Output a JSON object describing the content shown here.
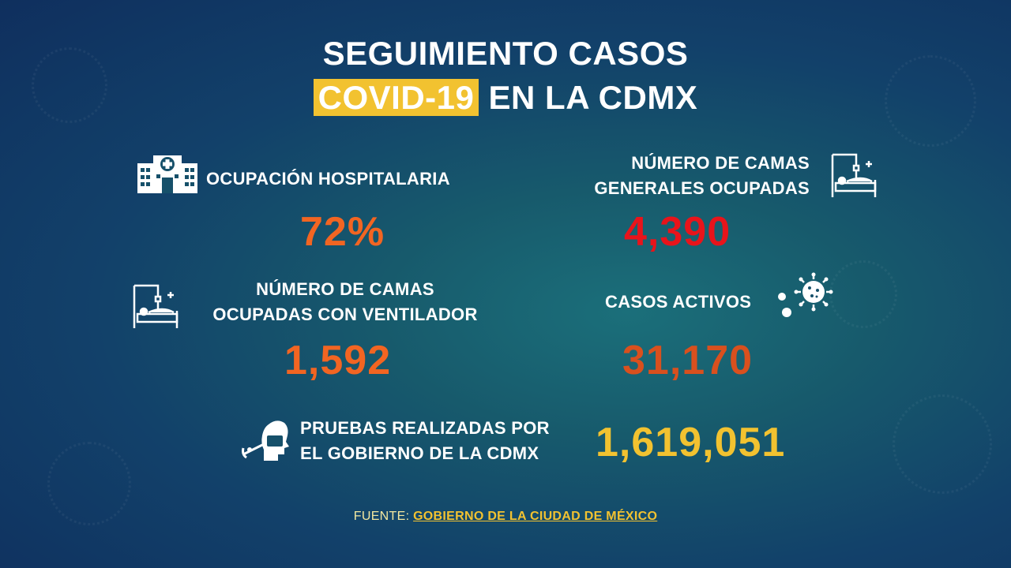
{
  "title": {
    "line1": "SEGUIMIENTO CASOS",
    "highlight": "COVID-19",
    "line2_rest": " EN LA CDMX"
  },
  "stats": {
    "ocupacion": {
      "label": "OCUPACIÓN HOSPITALARIA",
      "value": "72%",
      "icon": "hospital-icon"
    },
    "camas_generales": {
      "label_line1": "NÚMERO DE CAMAS",
      "label_line2": "GENERALES OCUPADAS",
      "value": "4,390",
      "icon": "hospital-bed-icon"
    },
    "camas_ventilador": {
      "label_line1": "NÚMERO DE CAMAS",
      "label_line2": "OCUPADAS CON VENTILADOR",
      "value": "1,592",
      "icon": "hospital-bed-icon"
    },
    "casos_activos": {
      "label": "CASOS ACTIVOS",
      "value": "31,170",
      "icon": "virus-icon"
    },
    "pruebas": {
      "label_line1": "PRUEBAS REALIZADAS POR",
      "label_line2": "EL GOBIERNO DE LA CDMX",
      "value": "1,619,051",
      "icon": "swab-test-icon"
    }
  },
  "source": {
    "prefix": "FUENTE: ",
    "link": "GOBIERNO DE LA CIUDAD DE MÉXICO"
  },
  "colors": {
    "highlight_yellow": "#f2c230",
    "orange": "#f26522",
    "red": "#e8141b",
    "dark_orange": "#d9501e",
    "yellow_value": "#f2c230"
  }
}
